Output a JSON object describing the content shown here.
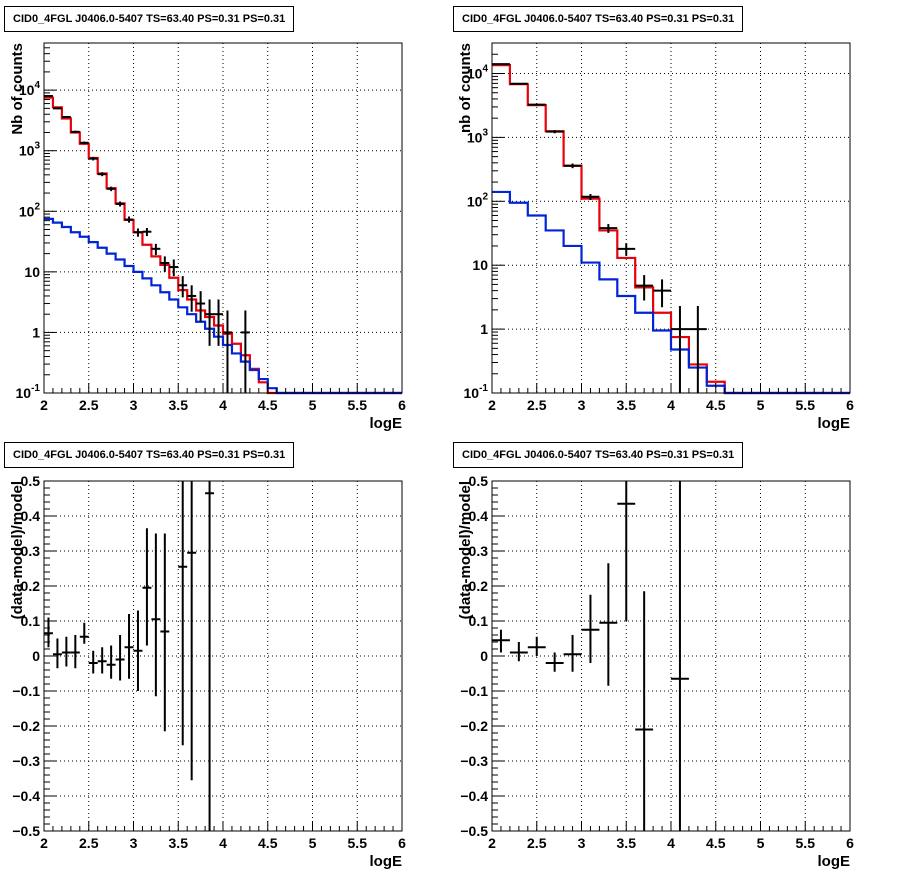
{
  "colors": {
    "total_model": "#e8000a",
    "component": "#0024d6",
    "data": "#000000",
    "grid": "#000000"
  },
  "chart_data": [
    {
      "type": "line",
      "title": "CID0_4FGL J0406.0-5407 TS=63.40 PS=0.31 PS=0.31",
      "xlabel": "logE",
      "ylabel": "Nb of counts",
      "xlim": [
        2,
        6
      ],
      "ylim": [
        0.1,
        60000
      ],
      "log_y": true,
      "grid": true,
      "x_ticks": [
        "2",
        "2.5",
        "3",
        "3.5",
        "4",
        "4.5",
        "5",
        "5.5",
        "6"
      ],
      "y_ticks": [
        "10^-1",
        "1",
        "10",
        "10^2",
        "10^3",
        "10^4"
      ],
      "bin_edges": [
        2.0,
        2.1,
        2.2,
        2.3,
        2.4,
        2.5,
        2.6,
        2.7,
        2.8,
        2.9,
        3.0,
        3.1,
        3.2,
        3.3,
        3.4,
        3.5,
        3.6,
        3.7,
        3.8,
        3.9,
        4.0,
        4.1,
        4.2,
        4.3,
        4.4,
        4.5,
        4.6,
        4.7,
        4.8,
        4.9,
        5.0,
        5.1,
        5.2,
        5.3,
        5.4,
        5.5,
        5.6,
        5.7,
        5.8,
        5.9,
        6.0
      ],
      "series": [
        {
          "role": "total",
          "values": [
            7500,
            5200,
            3400,
            2000,
            1300,
            760,
            420,
            240,
            135,
            72,
            45,
            28,
            18,
            13,
            8,
            5,
            3.5,
            2.3,
            1.8,
            1.3,
            0.95,
            0.65,
            0.42,
            0.25,
            0.15,
            0.1,
            0.1,
            0.1,
            0.1,
            0.1,
            0.1,
            0.1,
            0.1,
            0.1,
            0.1,
            0.1,
            0.1,
            0.1,
            0.1,
            0.1
          ]
        },
        {
          "role": "component",
          "values": [
            75,
            65,
            55,
            45,
            38,
            31,
            25,
            20,
            16,
            12.5,
            10,
            7.8,
            6.0,
            4.6,
            3.5,
            2.6,
            2.0,
            1.5,
            1.15,
            0.85,
            0.62,
            0.45,
            0.33,
            0.24,
            0.17,
            0.12,
            0.1,
            0.1,
            0.1,
            0.1,
            0.1,
            0.1,
            0.1,
            0.1,
            0.1,
            0.1,
            0.1,
            0.1,
            0.1,
            0.1
          ]
        }
      ],
      "points": [
        {
          "x": 2.05,
          "y": 8000,
          "ylo": 7800,
          "yhi": 8200
        },
        {
          "x": 2.15,
          "y": 5000,
          "ylo": 4850,
          "yhi": 5150
        },
        {
          "x": 2.25,
          "y": 3600,
          "ylo": 3480,
          "yhi": 3720
        },
        {
          "x": 2.35,
          "y": 2050,
          "ylo": 1960,
          "yhi": 2140
        },
        {
          "x": 2.45,
          "y": 1350,
          "ylo": 1280,
          "yhi": 1420
        },
        {
          "x": 2.55,
          "y": 740,
          "ylo": 690,
          "yhi": 790
        },
        {
          "x": 2.65,
          "y": 410,
          "ylo": 380,
          "yhi": 440
        },
        {
          "x": 2.75,
          "y": 235,
          "ylo": 215,
          "yhi": 255
        },
        {
          "x": 2.85,
          "y": 132,
          "ylo": 120,
          "yhi": 145
        },
        {
          "x": 2.95,
          "y": 73,
          "ylo": 65,
          "yhi": 82
        },
        {
          "x": 3.05,
          "y": 45,
          "ylo": 38,
          "yhi": 52
        },
        {
          "x": 3.15,
          "y": 46,
          "ylo": 39,
          "yhi": 53
        },
        {
          "x": 3.25,
          "y": 24,
          "ylo": 19,
          "yhi": 29
        },
        {
          "x": 3.35,
          "y": 14,
          "ylo": 10,
          "yhi": 18
        },
        {
          "x": 3.45,
          "y": 12,
          "ylo": 8.5,
          "yhi": 16
        },
        {
          "x": 3.55,
          "y": 6,
          "ylo": 3.8,
          "yhi": 8.5
        },
        {
          "x": 3.65,
          "y": 4,
          "ylo": 2.2,
          "yhi": 6
        },
        {
          "x": 3.75,
          "y": 3,
          "ylo": 1.5,
          "yhi": 4.8
        },
        {
          "x": 3.85,
          "y": 2,
          "ylo": 0.6,
          "yhi": 3.5
        },
        {
          "x": 3.95,
          "y": 2,
          "ylo": 0.6,
          "yhi": 3.5
        },
        {
          "x": 4.05,
          "y": 1,
          "ylo": 0.1,
          "yhi": 2.3
        },
        {
          "x": 4.25,
          "y": 1,
          "ylo": 0.1,
          "yhi": 2.3
        }
      ]
    },
    {
      "type": "line",
      "title": "CID0_4FGL J0406.0-5407 TS=63.40 PS=0.31 PS=0.31",
      "xlabel": "logE",
      "ylabel": "nb of counts",
      "xlim": [
        2,
        6
      ],
      "ylim": [
        0.1,
        30000
      ],
      "log_y": true,
      "grid": true,
      "x_ticks": [
        "2",
        "2.5",
        "3",
        "3.5",
        "4",
        "4.5",
        "5",
        "5.5",
        "6"
      ],
      "y_ticks": [
        "10^-1",
        "1",
        "10",
        "10^2",
        "10^3",
        "10^4"
      ],
      "bin_edges": [
        2.0,
        2.2,
        2.4,
        2.6,
        2.8,
        3.0,
        3.2,
        3.4,
        3.6,
        3.8,
        4.0,
        4.2,
        4.4,
        4.6,
        4.8,
        5.0,
        5.2,
        5.4,
        5.6,
        5.8,
        6.0
      ],
      "series": [
        {
          "role": "total",
          "values": [
            13500,
            6800,
            3200,
            1250,
            360,
            110,
            35,
            13,
            4.5,
            1.8,
            0.75,
            0.28,
            0.15,
            0.1,
            0.1,
            0.1,
            0.1,
            0.1,
            0.1,
            0.1
          ]
        },
        {
          "role": "component",
          "values": [
            140,
            95,
            60,
            35,
            20,
            11,
            6,
            3.3,
            1.8,
            0.95,
            0.48,
            0.25,
            0.13,
            0.1,
            0.1,
            0.1,
            0.1,
            0.1,
            0.1,
            0.1
          ]
        }
      ],
      "points": [
        {
          "x": 2.1,
          "y": 14000,
          "ylo": 13700,
          "yhi": 14300
        },
        {
          "x": 2.3,
          "y": 6900,
          "ylo": 6700,
          "yhi": 7100
        },
        {
          "x": 2.5,
          "y": 3250,
          "ylo": 3130,
          "yhi": 3370
        },
        {
          "x": 2.7,
          "y": 1230,
          "ylo": 1160,
          "yhi": 1300
        },
        {
          "x": 2.9,
          "y": 360,
          "ylo": 330,
          "yhi": 390
        },
        {
          "x": 3.1,
          "y": 118,
          "ylo": 105,
          "yhi": 130
        },
        {
          "x": 3.3,
          "y": 38,
          "ylo": 32,
          "yhi": 44
        },
        {
          "x": 3.5,
          "y": 18,
          "ylo": 14,
          "yhi": 22
        },
        {
          "x": 3.7,
          "y": 4.8,
          "ylo": 2.8,
          "yhi": 7
        },
        {
          "x": 3.9,
          "y": 4,
          "ylo": 2.2,
          "yhi": 6
        },
        {
          "x": 4.1,
          "y": 1,
          "ylo": 0.1,
          "yhi": 2.3
        },
        {
          "x": 4.3,
          "y": 1,
          "ylo": 0.1,
          "yhi": 2.3
        }
      ]
    },
    {
      "type": "scatter",
      "title": "CID0_4FGL J0406.0-5407 TS=63.40 PS=0.31 PS=0.31",
      "xlabel": "logE",
      "ylabel": "(data-model)/model",
      "xlim": [
        2,
        6
      ],
      "ylim": [
        -0.5,
        0.5
      ],
      "grid": true,
      "x_ticks": [
        "2",
        "2.5",
        "3",
        "3.5",
        "4",
        "4.5",
        "5",
        "5.5",
        "6"
      ],
      "y_ticks": [
        "-0.5",
        "-0.4",
        "-0.3",
        "-0.2",
        "-0.1",
        "0",
        "0.1",
        "0.2",
        "0.3",
        "0.4",
        "0.5"
      ],
      "xerr": 0.05,
      "points": [
        {
          "x": 2.05,
          "y": 0.065,
          "ylo": 0.025,
          "yhi": 0.11
        },
        {
          "x": 2.15,
          "y": 0.005,
          "ylo": -0.035,
          "yhi": 0.05
        },
        {
          "x": 2.25,
          "y": 0.01,
          "ylo": -0.03,
          "yhi": 0.055
        },
        {
          "x": 2.35,
          "y": 0.01,
          "ylo": -0.035,
          "yhi": 0.06
        },
        {
          "x": 2.45,
          "y": 0.055,
          "ylo": 0.035,
          "yhi": 0.095
        },
        {
          "x": 2.55,
          "y": -0.02,
          "ylo": -0.05,
          "yhi": 0.015
        },
        {
          "x": 2.65,
          "y": -0.015,
          "ylo": -0.05,
          "yhi": 0.025
        },
        {
          "x": 2.75,
          "y": -0.025,
          "ylo": -0.065,
          "yhi": 0.03
        },
        {
          "x": 2.85,
          "y": -0.01,
          "ylo": -0.07,
          "yhi": 0.06
        },
        {
          "x": 2.95,
          "y": 0.025,
          "ylo": -0.065,
          "yhi": 0.12
        },
        {
          "x": 3.05,
          "y": 0.015,
          "ylo": -0.1,
          "yhi": 0.13
        },
        {
          "x": 3.15,
          "y": 0.195,
          "ylo": 0.03,
          "yhi": 0.365
        },
        {
          "x": 3.25,
          "y": 0.105,
          "ylo": -0.115,
          "yhi": 0.35
        },
        {
          "x": 3.35,
          "y": 0.07,
          "ylo": -0.215,
          "yhi": 0.35
        },
        {
          "x": 3.55,
          "y": 0.255,
          "ylo": -0.255,
          "yhi": 0.5
        },
        {
          "x": 3.65,
          "y": 0.295,
          "ylo": -0.355,
          "yhi": 0.5
        },
        {
          "x": 3.85,
          "y": 0.465,
          "ylo": -0.5,
          "yhi": 0.5
        }
      ]
    },
    {
      "type": "scatter",
      "title": "CID0_4FGL J0406.0-5407 TS=63.40 PS=0.31 PS=0.31",
      "xlabel": "logE",
      "ylabel": "(data-model)/model",
      "xlim": [
        2,
        6
      ],
      "ylim": [
        -0.5,
        0.5
      ],
      "grid": true,
      "x_ticks": [
        "2",
        "2.5",
        "3",
        "3.5",
        "4",
        "4.5",
        "5",
        "5.5",
        "6"
      ],
      "y_ticks": [
        "-0.5",
        "-0.4",
        "-0.3",
        "-0.2",
        "-0.1",
        "0",
        "0.1",
        "0.2",
        "0.3",
        "0.4",
        "0.5"
      ],
      "xerr": 0.1,
      "points": [
        {
          "x": 2.1,
          "y": 0.045,
          "ylo": 0.01,
          "yhi": 0.075
        },
        {
          "x": 2.3,
          "y": 0.01,
          "ylo": -0.015,
          "yhi": 0.04
        },
        {
          "x": 2.5,
          "y": 0.025,
          "ylo": 0.0,
          "yhi": 0.055
        },
        {
          "x": 2.7,
          "y": -0.02,
          "ylo": -0.045,
          "yhi": 0.01
        },
        {
          "x": 2.9,
          "y": 0.005,
          "ylo": -0.045,
          "yhi": 0.06
        },
        {
          "x": 3.1,
          "y": 0.075,
          "ylo": -0.02,
          "yhi": 0.175
        },
        {
          "x": 3.3,
          "y": 0.095,
          "ylo": -0.085,
          "yhi": 0.265
        },
        {
          "x": 3.5,
          "y": 0.435,
          "ylo": 0.1,
          "yhi": 0.5
        },
        {
          "x": 3.7,
          "y": -0.21,
          "ylo": -0.5,
          "yhi": 0.185
        },
        {
          "x": 4.1,
          "y": -0.065,
          "ylo": -0.5,
          "yhi": 0.5
        }
      ]
    }
  ]
}
